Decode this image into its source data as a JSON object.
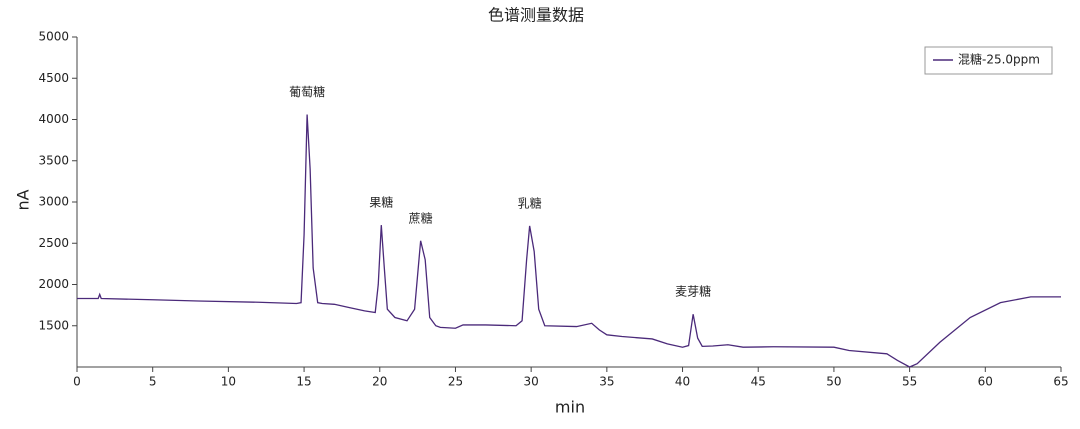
{
  "chart_data": {
    "type": "line",
    "title": "色谱测量数据",
    "x_label": "min",
    "y_label": "nA",
    "xlim": [
      0,
      65
    ],
    "xticks": [
      0,
      5,
      10,
      15,
      20,
      25,
      30,
      35,
      40,
      45,
      50,
      55,
      60,
      65
    ],
    "ylim": [
      1000,
      5000
    ],
    "yticks": [
      1500,
      2000,
      2500,
      3000,
      3500,
      4000,
      4500,
      5000
    ],
    "legend": "top-right",
    "x": [
      0,
      1.4,
      1.5,
      1.6,
      5,
      8,
      12,
      14.5,
      14.8,
      15.0,
      15.2,
      15.4,
      15.6,
      15.9,
      16.2,
      17,
      18,
      19,
      19.7,
      19.9,
      20.1,
      20.3,
      20.5,
      21,
      21.8,
      22.3,
      22.7,
      23,
      23.3,
      23.7,
      24,
      25,
      25.5,
      27,
      29,
      29.4,
      29.7,
      29.9,
      30.2,
      30.5,
      30.9,
      33,
      34,
      34.5,
      35,
      36,
      38,
      39,
      40,
      40.4,
      40.7,
      41,
      41.3,
      42,
      43,
      44,
      46,
      50,
      51,
      53.5,
      54.2,
      55,
      55.5,
      57,
      59,
      61,
      63,
      65
    ],
    "series": [
      {
        "name": "混糖-25.0ppm",
        "color": "#4b2a7a",
        "values": [
          1830,
          1830,
          1880,
          1830,
          1815,
          1800,
          1785,
          1770,
          1780,
          2600,
          4060,
          3400,
          2200,
          1780,
          1770,
          1760,
          1720,
          1680,
          1660,
          2000,
          2720,
          2200,
          1700,
          1600,
          1560,
          1700,
          2530,
          2300,
          1600,
          1500,
          1480,
          1470,
          1510,
          1510,
          1500,
          1560,
          2300,
          2710,
          2400,
          1700,
          1500,
          1490,
          1530,
          1450,
          1390,
          1370,
          1340,
          1280,
          1240,
          1260,
          1640,
          1350,
          1250,
          1255,
          1270,
          1240,
          1245,
          1240,
          1200,
          1160,
          1080,
          1000,
          1040,
          1300,
          1600,
          1780,
          1850,
          1850
        ]
      }
    ],
    "annotations": [
      {
        "text": "葡萄糖",
        "x": 15.2,
        "y": 4060
      },
      {
        "text": "果糖",
        "x": 20.1,
        "y": 2720
      },
      {
        "text": "蔗糖",
        "x": 22.7,
        "y": 2530
      },
      {
        "text": "乳糖",
        "x": 29.9,
        "y": 2710
      },
      {
        "text": "麦芽糖",
        "x": 40.7,
        "y": 1640
      }
    ]
  }
}
